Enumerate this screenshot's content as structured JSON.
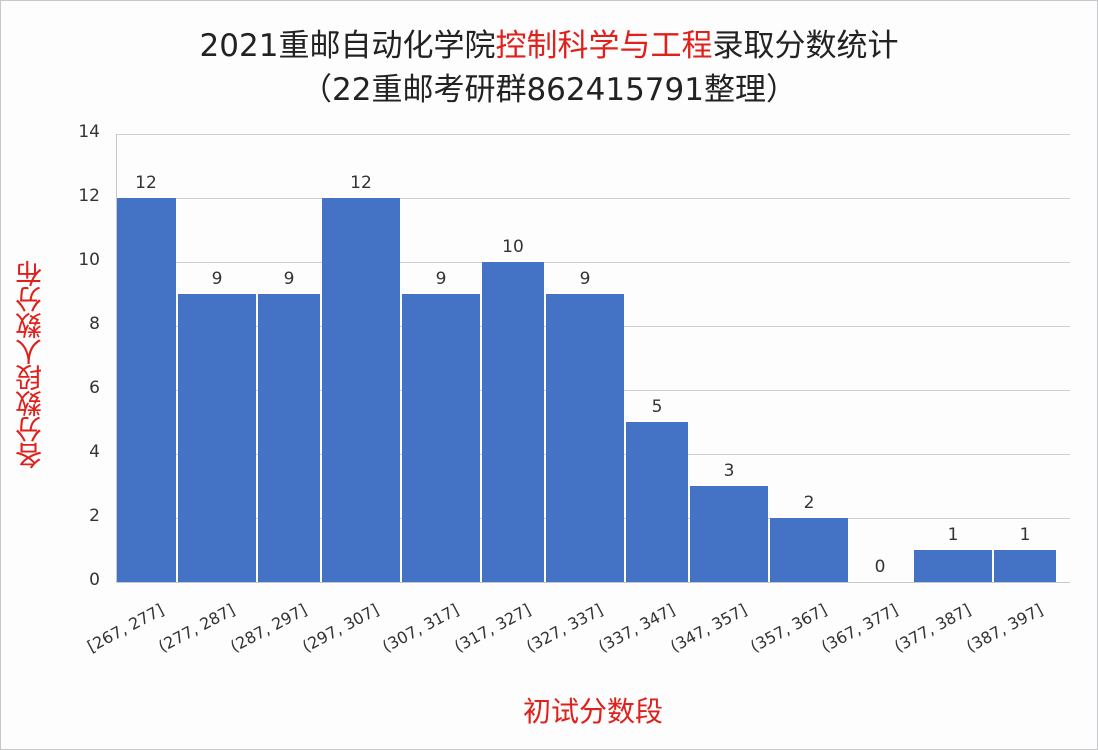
{
  "title": {
    "line1_prefix": "2021重邮自动化学院",
    "line1_highlight": "控制科学与工程",
    "line1_suffix": "录取分数统计",
    "line2": "（22重邮考研群862415791整理）"
  },
  "colors": {
    "bar": "#4472c4",
    "highlight": "#e0201b",
    "text": "#222222"
  },
  "axes": {
    "ylabel": "各分数段人数分布",
    "xlabel": "初试分数段",
    "yticks": [
      "0",
      "2",
      "4",
      "6",
      "8",
      "10",
      "12",
      "14"
    ]
  },
  "chart_data": {
    "type": "bar",
    "title": "2021重邮自动化学院控制科学与工程录取分数统计（22重邮考研群862415791整理）",
    "xlabel": "初试分数段",
    "ylabel": "各分数段人数分布",
    "ylim": [
      0,
      14
    ],
    "grid": true,
    "legend": "none",
    "categories": [
      "[267, 277]",
      "(277, 287]",
      "(287, 297]",
      "(297, 307]",
      "(307, 317]",
      "(317, 327]",
      "(327, 337]",
      "(337, 347]",
      "(347, 357]",
      "(357, 367]",
      "(367, 377]",
      "(377, 387]",
      "(387, 397]"
    ],
    "values": [
      12,
      9,
      9,
      12,
      9,
      10,
      9,
      5,
      3,
      2,
      0,
      1,
      1
    ],
    "data_labels": [
      "12",
      "9",
      "9",
      "12",
      "9",
      "10",
      "9",
      "5",
      "3",
      "2",
      "0",
      "1",
      "1"
    ]
  }
}
